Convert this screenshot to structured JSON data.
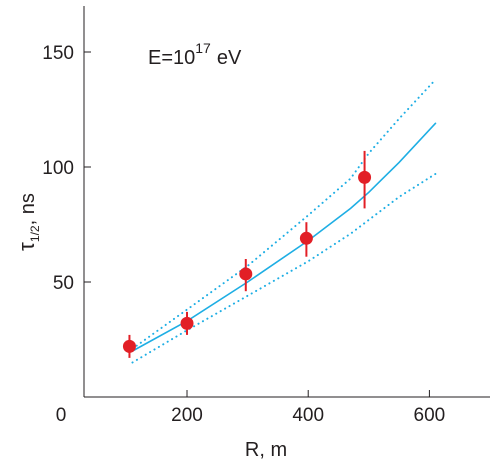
{
  "chart_data": {
    "type": "scatter",
    "annotation": {
      "base": "E=10",
      "exponent": "17",
      "unit": "eV"
    },
    "xlabel": "R, m",
    "ylabel": {
      "symbol": "τ",
      "subscript": "1/2",
      "unit": ", ns"
    },
    "xlim": [
      30,
      700
    ],
    "ylim": [
      0,
      170
    ],
    "x_ticks": [
      200,
      400,
      600
    ],
    "y_ticks": [
      50,
      100,
      150
    ],
    "origin_label": "0",
    "grid": false,
    "colors": {
      "points": "#e21f26",
      "error_bars": "#e21f26",
      "curves": "#1eaee4",
      "axes": "#231f20"
    },
    "points": [
      {
        "x": 105,
        "y": 22,
        "yerr_low": 17,
        "yerr_high": 27
      },
      {
        "x": 200,
        "y": 32,
        "yerr_low": 27,
        "yerr_high": 37
      },
      {
        "x": 297,
        "y": 53.5,
        "yerr_low": 46,
        "yerr_high": 60
      },
      {
        "x": 397,
        "y": 69,
        "yerr_low": 61,
        "yerr_high": 76
      },
      {
        "x": 493,
        "y": 95.5,
        "yerr_low": 82,
        "yerr_high": 107
      }
    ],
    "curves": [
      {
        "style": "solid",
        "x": [
          110,
          200,
          300,
          400,
          470,
          500,
          550,
          610
        ],
        "y": [
          20,
          33,
          50,
          68,
          82,
          89,
          102,
          119
        ]
      },
      {
        "style": "dotted",
        "x": [
          110,
          200,
          300,
          400,
          470,
          500,
          550,
          610
        ],
        "y": [
          21,
          38,
          57,
          79,
          95,
          106,
          121,
          138
        ]
      },
      {
        "style": "dotted",
        "x": [
          110,
          200,
          300,
          400,
          470,
          500,
          550,
          610
        ],
        "y": [
          15,
          29,
          44,
          59,
          71,
          77,
          87,
          97
        ]
      }
    ]
  }
}
